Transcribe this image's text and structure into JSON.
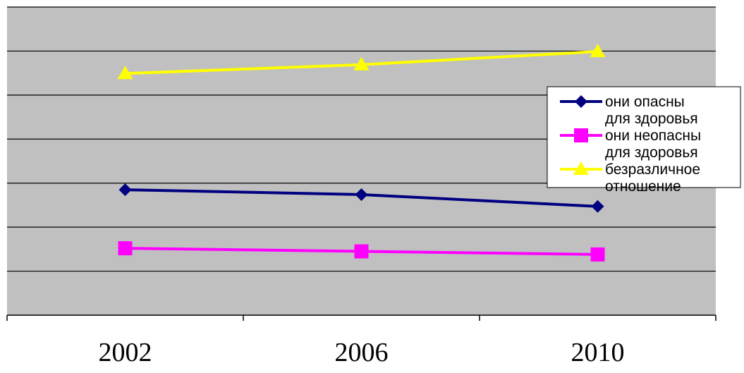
{
  "chart_data": {
    "type": "line",
    "title": "",
    "xlabel": "",
    "ylabel": "",
    "categories": [
      "2002",
      "2006",
      "2010"
    ],
    "ylim": [
      0,
      7
    ],
    "grid": true,
    "legend_position": "right",
    "series": [
      {
        "name_lines": [
          "они опасны",
          "для здоровья"
        ],
        "values": [
          2.85,
          2.74,
          2.47
        ],
        "color": "#000080",
        "marker": "diamond"
      },
      {
        "name_lines": [
          "они неопасны",
          "для здоровья"
        ],
        "values": [
          1.52,
          1.45,
          1.38
        ],
        "color": "#ff00ff",
        "marker": "square"
      },
      {
        "name_lines": [
          "безразличное",
          "отношение"
        ],
        "values": [
          5.49,
          5.69,
          5.99
        ],
        "color": "#ffff00",
        "marker": "triangle"
      }
    ]
  }
}
